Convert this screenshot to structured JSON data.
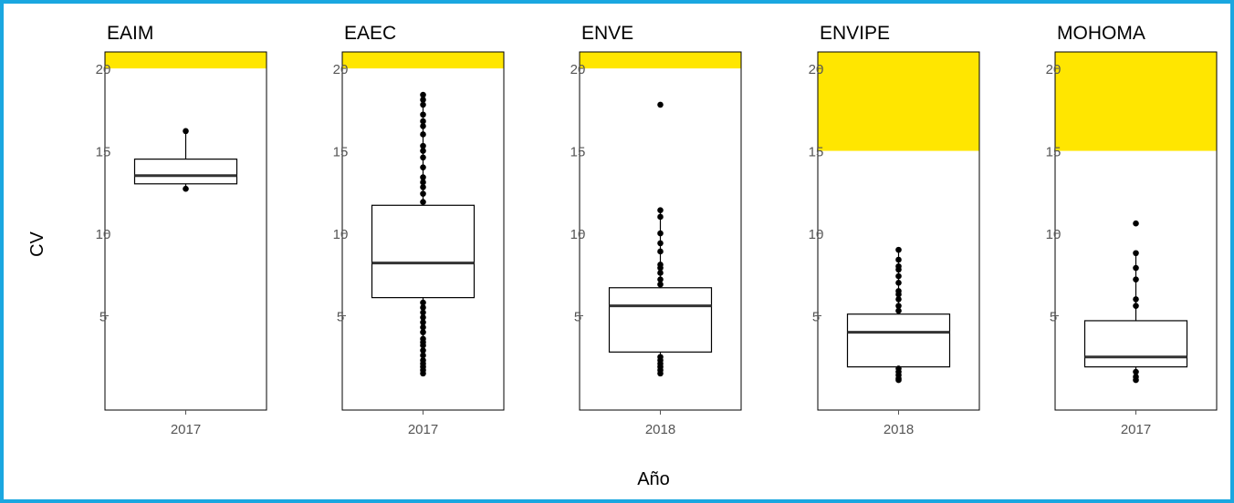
{
  "chart_data": {
    "type": "boxplot",
    "ylabel": "CV",
    "xlabel": "Año",
    "ylim": [
      0,
      21
    ],
    "yticks": [
      5,
      10,
      15,
      20
    ],
    "grid": false,
    "highlight_color": "#ffe600",
    "frame_color": "#1aa7e0",
    "panels": [
      {
        "title": "EAIM",
        "category": "2017",
        "highlight_from": 20,
        "box": {
          "lower_whisker": 12.7,
          "q1": 13.0,
          "median": 13.5,
          "q3": 14.5,
          "upper_whisker": 16.2
        },
        "outliers": [
          12.7,
          16.2
        ]
      },
      {
        "title": "EAEC",
        "category": "2017",
        "highlight_from": 20,
        "box": {
          "lower_whisker": 1.5,
          "q1": 6.1,
          "median": 8.2,
          "q3": 11.7,
          "upper_whisker": 18.4
        },
        "outliers": [
          1.5,
          1.7,
          1.9,
          2.1,
          2.3,
          2.6,
          2.9,
          3.2,
          3.4,
          3.6,
          4.0,
          4.3,
          4.6,
          4.9,
          5.2,
          5.5,
          5.8,
          11.9,
          12.4,
          12.8,
          13.1,
          13.4,
          14.0,
          14.6,
          15.0,
          15.3,
          16.0,
          16.5,
          16.8,
          17.2,
          17.8,
          18.1,
          18.4
        ]
      },
      {
        "title": "ENVE",
        "category": "2018",
        "highlight_from": 20,
        "box": {
          "lower_whisker": 1.5,
          "q1": 2.8,
          "median": 5.6,
          "q3": 6.7,
          "upper_whisker": 11.4
        },
        "outliers": [
          1.5,
          1.7,
          1.9,
          2.1,
          2.3,
          2.5,
          6.9,
          7.2,
          7.6,
          7.9,
          8.1,
          8.9,
          9.4,
          10.0,
          11.0,
          11.4,
          17.8
        ]
      },
      {
        "title": "ENVIPE",
        "category": "2018",
        "highlight_from": 15,
        "box": {
          "lower_whisker": 1.1,
          "q1": 1.9,
          "median": 4.0,
          "q3": 5.1,
          "upper_whisker": 9.0
        },
        "outliers": [
          1.1,
          1.2,
          1.4,
          1.6,
          1.8,
          5.3,
          5.6,
          6.0,
          6.3,
          6.5,
          7.0,
          7.4,
          7.8,
          8.0,
          8.4,
          9.0
        ]
      },
      {
        "title": "MOHOMA",
        "category": "2017",
        "highlight_from": 15,
        "box": {
          "lower_whisker": 1.1,
          "q1": 1.9,
          "median": 2.5,
          "q3": 4.7,
          "upper_whisker": 8.8
        },
        "outliers": [
          1.1,
          1.3,
          1.6,
          5.6,
          6.0,
          7.2,
          7.9,
          8.8,
          10.6
        ]
      }
    ]
  }
}
